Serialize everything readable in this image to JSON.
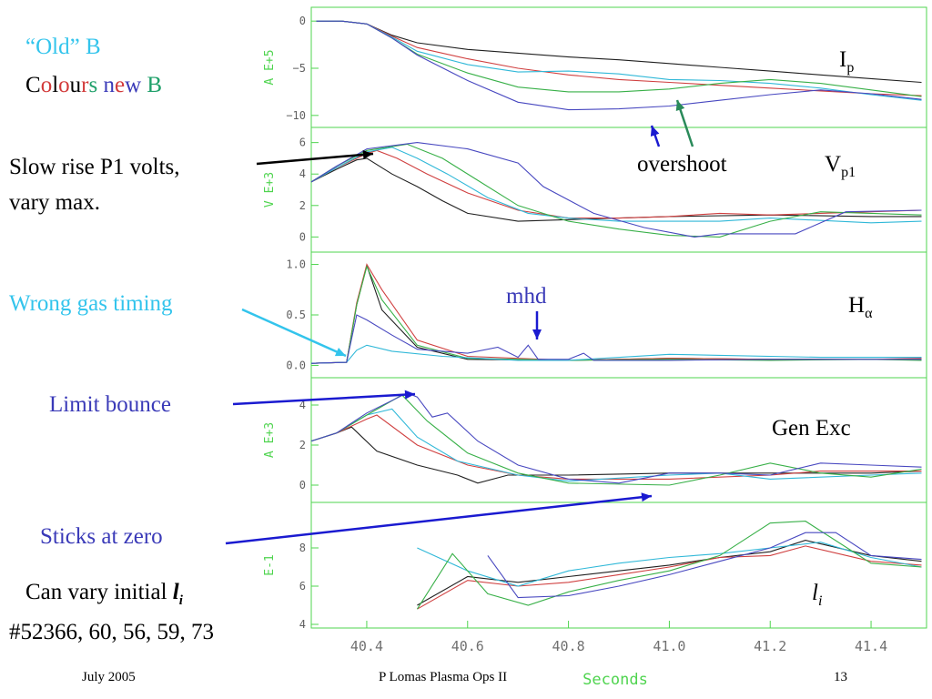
{
  "slide": {
    "old_b_label": "“Old” B",
    "colours_new_b": [
      {
        "t": "C",
        "c": "#000000"
      },
      {
        "t": "o",
        "c": "#d23a3a"
      },
      {
        "t": "l",
        "c": "#000000"
      },
      {
        "t": "o",
        "c": "#d23a3a"
      },
      {
        "t": "u",
        "c": "#000000"
      },
      {
        "t": "r",
        "c": "#d23a3a"
      },
      {
        "t": "s",
        "c": "#1fa06a"
      },
      {
        "t": " ",
        "c": "#000000"
      },
      {
        "t": "n",
        "c": "#3a3ab8"
      },
      {
        "t": "e",
        "c": "#d23a3a"
      },
      {
        "t": "w",
        "c": "#3a3ab8"
      },
      {
        "t": " ",
        "c": "#000000"
      },
      {
        "t": "B",
        "c": "#1fa06a"
      }
    ],
    "annotations": {
      "slow_rise_line1": "Slow rise P1 volts,",
      "slow_rise_line2": "vary max.",
      "wrong_gas": "Wrong gas timing",
      "limit_bounce": "Limit bounce",
      "sticks_at_zero": "Sticks at zero",
      "can_vary_prefix": "Can vary initial ",
      "can_vary_l": "l",
      "can_vary_sub": "i",
      "shots": "#52366, 60, 56, 59, 73",
      "overshoot": "overshoot",
      "mhd": "mhd"
    },
    "footer": {
      "date": "July 2005",
      "author": "P Lomas  Plasma Ops II",
      "page": "13"
    },
    "annotation_colors": {
      "cyan": "#33c4ec",
      "blue": "#3a3ab8",
      "arrow_blue": "#1a1ad0",
      "arrow_green": "#2a8a5a"
    }
  },
  "chart_data": {
    "type": "line",
    "xlabel": "Seconds",
    "xlim": [
      40.29,
      41.51
    ],
    "xticks": [
      "40.4",
      "40.6",
      "40.8",
      "41.0",
      "41.2",
      "41.4"
    ],
    "series_colors": {
      "black": "#202020",
      "red": "#d04040",
      "cyan": "#30b8d8",
      "green": "#38b048",
      "blue": "#4848c0"
    },
    "panels": [
      {
        "label": "I",
        "label_sub": "p",
        "ylabel": "A  E+5",
        "ylim": [
          -10.5,
          0.5
        ],
        "yticks": [
          "0",
          "−5",
          "−10"
        ],
        "series": [
          {
            "color": "black",
            "x": [
              40.3,
              40.35,
              40.4,
              40.45,
              40.5,
              40.6,
              40.7,
              40.8,
              40.9,
              41.0,
              41.1,
              41.2,
              41.3,
              41.4,
              41.5
            ],
            "y": [
              0,
              0,
              -0.3,
              -1.5,
              -2.3,
              -3.0,
              -3.4,
              -3.8,
              -4.1,
              -4.5,
              -4.9,
              -5.3,
              -5.7,
              -6.1,
              -6.5
            ]
          },
          {
            "color": "red",
            "x": [
              40.3,
              40.35,
              40.4,
              40.45,
              40.5,
              40.6,
              40.7,
              40.8,
              40.9,
              41.0,
              41.1,
              41.2,
              41.3,
              41.4,
              41.5
            ],
            "y": [
              0,
              0,
              -0.3,
              -1.6,
              -2.8,
              -4.0,
              -5.0,
              -5.7,
              -6.2,
              -6.5,
              -6.8,
              -7.1,
              -7.4,
              -7.7,
              -7.9
            ]
          },
          {
            "color": "cyan",
            "x": [
              40.3,
              40.35,
              40.4,
              40.45,
              40.5,
              40.6,
              40.7,
              40.8,
              40.9,
              41.0,
              41.1,
              41.2,
              41.3,
              41.4,
              41.5
            ],
            "y": [
              0,
              0,
              -0.3,
              -1.7,
              -3.2,
              -4.6,
              -5.4,
              -5.3,
              -5.6,
              -6.2,
              -6.3,
              -6.6,
              -7.1,
              -7.8,
              -8.4
            ]
          },
          {
            "color": "green",
            "x": [
              40.3,
              40.35,
              40.4,
              40.45,
              40.5,
              40.6,
              40.7,
              40.8,
              40.9,
              41.0,
              41.1,
              41.2,
              41.3,
              41.4,
              41.5
            ],
            "y": [
              0,
              0,
              -0.3,
              -1.8,
              -3.5,
              -5.5,
              -7.0,
              -7.5,
              -7.5,
              -7.2,
              -6.6,
              -6.2,
              -6.6,
              -7.3,
              -8.0
            ]
          },
          {
            "color": "blue",
            "x": [
              40.3,
              40.35,
              40.4,
              40.45,
              40.5,
              40.6,
              40.7,
              40.8,
              40.9,
              41.0,
              41.1,
              41.2,
              41.3,
              41.4,
              41.5
            ],
            "y": [
              0,
              0,
              -0.3,
              -1.8,
              -3.6,
              -6.3,
              -8.6,
              -9.4,
              -9.3,
              -9.0,
              -8.4,
              -7.8,
              -7.3,
              -7.7,
              -8.3
            ]
          }
        ]
      },
      {
        "label": "V",
        "label_sub": "p1",
        "ylabel": "V  E+3",
        "ylim": [
          -0.5,
          6.5
        ],
        "yticks": [
          "6",
          "4",
          "2",
          "0"
        ],
        "series": [
          {
            "color": "black",
            "x": [
              40.29,
              40.34,
              40.38,
              40.4,
              40.45,
              40.5,
              40.55,
              40.6,
              40.7,
              40.8,
              40.9,
              41.0,
              41.2,
              41.4,
              41.5
            ],
            "y": [
              3.5,
              4.3,
              4.9,
              5.0,
              4.0,
              3.2,
              2.3,
              1.5,
              1.0,
              1.1,
              1.2,
              1.3,
              1.4,
              1.3,
              1.3
            ]
          },
          {
            "color": "red",
            "x": [
              40.29,
              40.34,
              40.4,
              40.42,
              40.46,
              40.52,
              40.6,
              40.7,
              40.8,
              40.9,
              41.0,
              41.1,
              41.2,
              41.4,
              41.5
            ],
            "y": [
              3.5,
              4.4,
              5.3,
              5.5,
              5.0,
              4.0,
              2.8,
              1.7,
              1.2,
              1.2,
              1.3,
              1.5,
              1.4,
              1.6,
              1.7
            ]
          },
          {
            "color": "cyan",
            "x": [
              40.29,
              40.34,
              40.4,
              40.45,
              40.5,
              40.56,
              40.64,
              40.72,
              40.8,
              40.9,
              41.0,
              41.1,
              41.2,
              41.4,
              41.5
            ],
            "y": [
              3.5,
              4.4,
              5.4,
              5.7,
              5.0,
              4.0,
              2.5,
              1.5,
              1.2,
              1.0,
              1.0,
              1.0,
              1.2,
              0.9,
              1.0
            ]
          },
          {
            "color": "green",
            "x": [
              40.29,
              40.34,
              40.4,
              40.48,
              40.55,
              40.62,
              40.7,
              40.8,
              40.9,
              41.0,
              41.1,
              41.2,
              41.3,
              41.4,
              41.5
            ],
            "y": [
              3.5,
              4.5,
              5.5,
              5.9,
              5.0,
              3.6,
              2.0,
              1.0,
              0.5,
              0.1,
              0.0,
              1.0,
              1.6,
              1.5,
              1.4
            ]
          },
          {
            "color": "blue",
            "x": [
              40.29,
              40.34,
              40.4,
              40.5,
              40.6,
              40.7,
              40.75,
              40.85,
              40.95,
              41.05,
              41.1,
              41.2,
              41.25,
              41.35,
              41.5
            ],
            "y": [
              3.5,
              4.5,
              5.6,
              6.0,
              5.6,
              4.7,
              3.2,
              1.5,
              0.6,
              0.0,
              0.2,
              0.2,
              0.2,
              1.6,
              1.7
            ]
          }
        ]
      },
      {
        "label": "H",
        "label_sub": "α",
        "ylabel": "",
        "ylim": [
          -0.05,
          1.05
        ],
        "yticks": [
          "1.0",
          "0.5",
          "0.0"
        ],
        "series": [
          {
            "color": "black",
            "x": [
              40.29,
              40.36,
              40.38,
              40.4,
              40.43,
              40.5,
              40.6,
              40.8,
              41.0,
              41.2,
              41.4,
              41.5
            ],
            "y": [
              0.02,
              0.03,
              0.6,
              0.99,
              0.55,
              0.18,
              0.06,
              0.05,
              0.07,
              0.06,
              0.06,
              0.06
            ]
          },
          {
            "color": "red",
            "x": [
              40.29,
              40.36,
              40.38,
              40.4,
              40.43,
              40.5,
              40.6,
              40.8,
              41.0,
              41.2,
              41.4,
              41.5
            ],
            "y": [
              0.02,
              0.03,
              0.62,
              1.0,
              0.75,
              0.25,
              0.09,
              0.05,
              0.07,
              0.06,
              0.06,
              0.07
            ]
          },
          {
            "color": "green",
            "x": [
              40.29,
              40.36,
              40.38,
              40.4,
              40.43,
              40.5,
              40.6,
              40.8,
              41.0,
              41.2,
              41.4,
              41.5
            ],
            "y": [
              0.02,
              0.03,
              0.6,
              0.98,
              0.65,
              0.2,
              0.07,
              0.05,
              0.06,
              0.05,
              0.06,
              0.05
            ]
          },
          {
            "color": "cyan",
            "x": [
              40.29,
              40.36,
              40.38,
              40.4,
              40.45,
              40.55,
              40.7,
              40.8,
              41.0,
              41.1,
              41.3,
              41.5
            ],
            "y": [
              0.02,
              0.03,
              0.15,
              0.2,
              0.14,
              0.09,
              0.05,
              0.05,
              0.11,
              0.1,
              0.08,
              0.08
            ]
          },
          {
            "color": "blue",
            "x": [
              40.29,
              40.36,
              40.38,
              40.4,
              40.45,
              40.5,
              40.55,
              40.6,
              40.66,
              40.7,
              40.72,
              40.74,
              40.8,
              40.83,
              40.85,
              40.9,
              41.0,
              41.2,
              41.5
            ],
            "y": [
              0.02,
              0.03,
              0.5,
              0.45,
              0.3,
              0.16,
              0.14,
              0.12,
              0.18,
              0.08,
              0.2,
              0.06,
              0.06,
              0.12,
              0.05,
              0.05,
              0.05,
              0.06,
              0.06
            ]
          }
        ]
      },
      {
        "label": "Gen Exc",
        "ylabel": "A  E+3",
        "ylim": [
          -0.5,
          5.0
        ],
        "yticks": [
          "4",
          "2",
          "0"
        ],
        "series": [
          {
            "color": "black",
            "x": [
              40.29,
              40.34,
              40.37,
              40.42,
              40.5,
              40.58,
              40.62,
              40.68,
              40.8,
              41.0,
              41.2,
              41.4,
              41.5
            ],
            "y": [
              2.2,
              2.6,
              2.9,
              1.7,
              1.0,
              0.5,
              0.1,
              0.5,
              0.5,
              0.6,
              0.6,
              0.6,
              0.7
            ]
          },
          {
            "color": "red",
            "x": [
              40.29,
              40.34,
              40.4,
              40.42,
              40.5,
              40.6,
              40.7,
              40.8,
              41.0,
              41.2,
              41.3,
              41.4,
              41.5
            ],
            "y": [
              2.2,
              2.6,
              3.3,
              3.5,
              2.0,
              1.0,
              0.5,
              0.3,
              0.3,
              0.5,
              0.7,
              0.7,
              0.7
            ]
          },
          {
            "color": "cyan",
            "x": [
              40.29,
              40.34,
              40.4,
              40.45,
              40.5,
              40.58,
              40.7,
              40.8,
              41.0,
              41.1,
              41.2,
              41.4,
              41.5
            ],
            "y": [
              2.2,
              2.6,
              3.5,
              3.8,
              2.4,
              1.2,
              0.5,
              0.2,
              0.5,
              0.6,
              0.3,
              0.5,
              0.6
            ]
          },
          {
            "color": "green",
            "x": [
              40.29,
              40.34,
              40.4,
              40.47,
              40.52,
              40.6,
              40.7,
              40.8,
              41.0,
              41.1,
              41.2,
              41.3,
              41.4,
              41.5
            ],
            "y": [
              2.2,
              2.6,
              3.5,
              4.5,
              3.2,
              1.6,
              0.6,
              0.1,
              0.0,
              0.5,
              1.1,
              0.6,
              0.4,
              0.8
            ]
          },
          {
            "color": "blue",
            "x": [
              40.29,
              40.34,
              40.4,
              40.48,
              40.5,
              40.53,
              40.56,
              40.62,
              40.7,
              40.8,
              40.9,
              41.0,
              41.1,
              41.2,
              41.3,
              41.4,
              41.5
            ],
            "y": [
              2.2,
              2.6,
              3.6,
              4.6,
              4.4,
              3.4,
              3.6,
              2.2,
              1.0,
              0.3,
              0.1,
              0.6,
              0.6,
              0.5,
              1.1,
              1.0,
              0.9
            ]
          }
        ]
      },
      {
        "label": "l",
        "label_sub": "i",
        "ylabel": "E-1",
        "ylim": [
          4,
          10
        ],
        "yticks": [
          "8",
          "6",
          "4"
        ],
        "series": [
          {
            "color": "black",
            "x": [
              40.5,
              40.6,
              40.7,
              40.8,
              40.9,
              41.0,
              41.1,
              41.2,
              41.27,
              41.4,
              41.5
            ],
            "y": [
              5.0,
              6.5,
              6.2,
              6.5,
              6.8,
              7.1,
              7.5,
              7.8,
              8.4,
              7.6,
              7.3
            ]
          },
          {
            "color": "red",
            "x": [
              40.5,
              40.6,
              40.7,
              40.8,
              40.9,
              41.0,
              41.1,
              41.2,
              41.27,
              41.4,
              41.5
            ],
            "y": [
              4.8,
              6.3,
              6.0,
              6.2,
              6.6,
              7.0,
              7.5,
              7.6,
              8.1,
              7.3,
              7.1
            ]
          },
          {
            "color": "cyan",
            "x": [
              40.5,
              40.6,
              40.7,
              40.8,
              40.9,
              41.0,
              41.1,
              41.2,
              41.3,
              41.4,
              41.5
            ],
            "y": [
              8.0,
              6.8,
              6.0,
              6.8,
              7.2,
              7.5,
              7.7,
              8.0,
              8.3,
              7.5,
              7.0
            ]
          },
          {
            "color": "green",
            "x": [
              40.5,
              40.57,
              40.64,
              40.72,
              40.8,
              40.9,
              41.0,
              41.1,
              41.2,
              41.27,
              41.4,
              41.5
            ],
            "y": [
              4.8,
              7.7,
              5.6,
              5.0,
              5.7,
              6.3,
              6.8,
              7.6,
              9.3,
              9.4,
              7.2,
              7.0
            ]
          },
          {
            "color": "blue",
            "x": [
              40.64,
              40.7,
              40.8,
              40.9,
              41.0,
              41.1,
              41.2,
              41.27,
              41.33,
              41.4,
              41.5
            ],
            "y": [
              7.6,
              5.4,
              5.5,
              6.0,
              6.6,
              7.3,
              8.0,
              8.8,
              8.8,
              7.6,
              7.4
            ]
          }
        ]
      }
    ]
  }
}
